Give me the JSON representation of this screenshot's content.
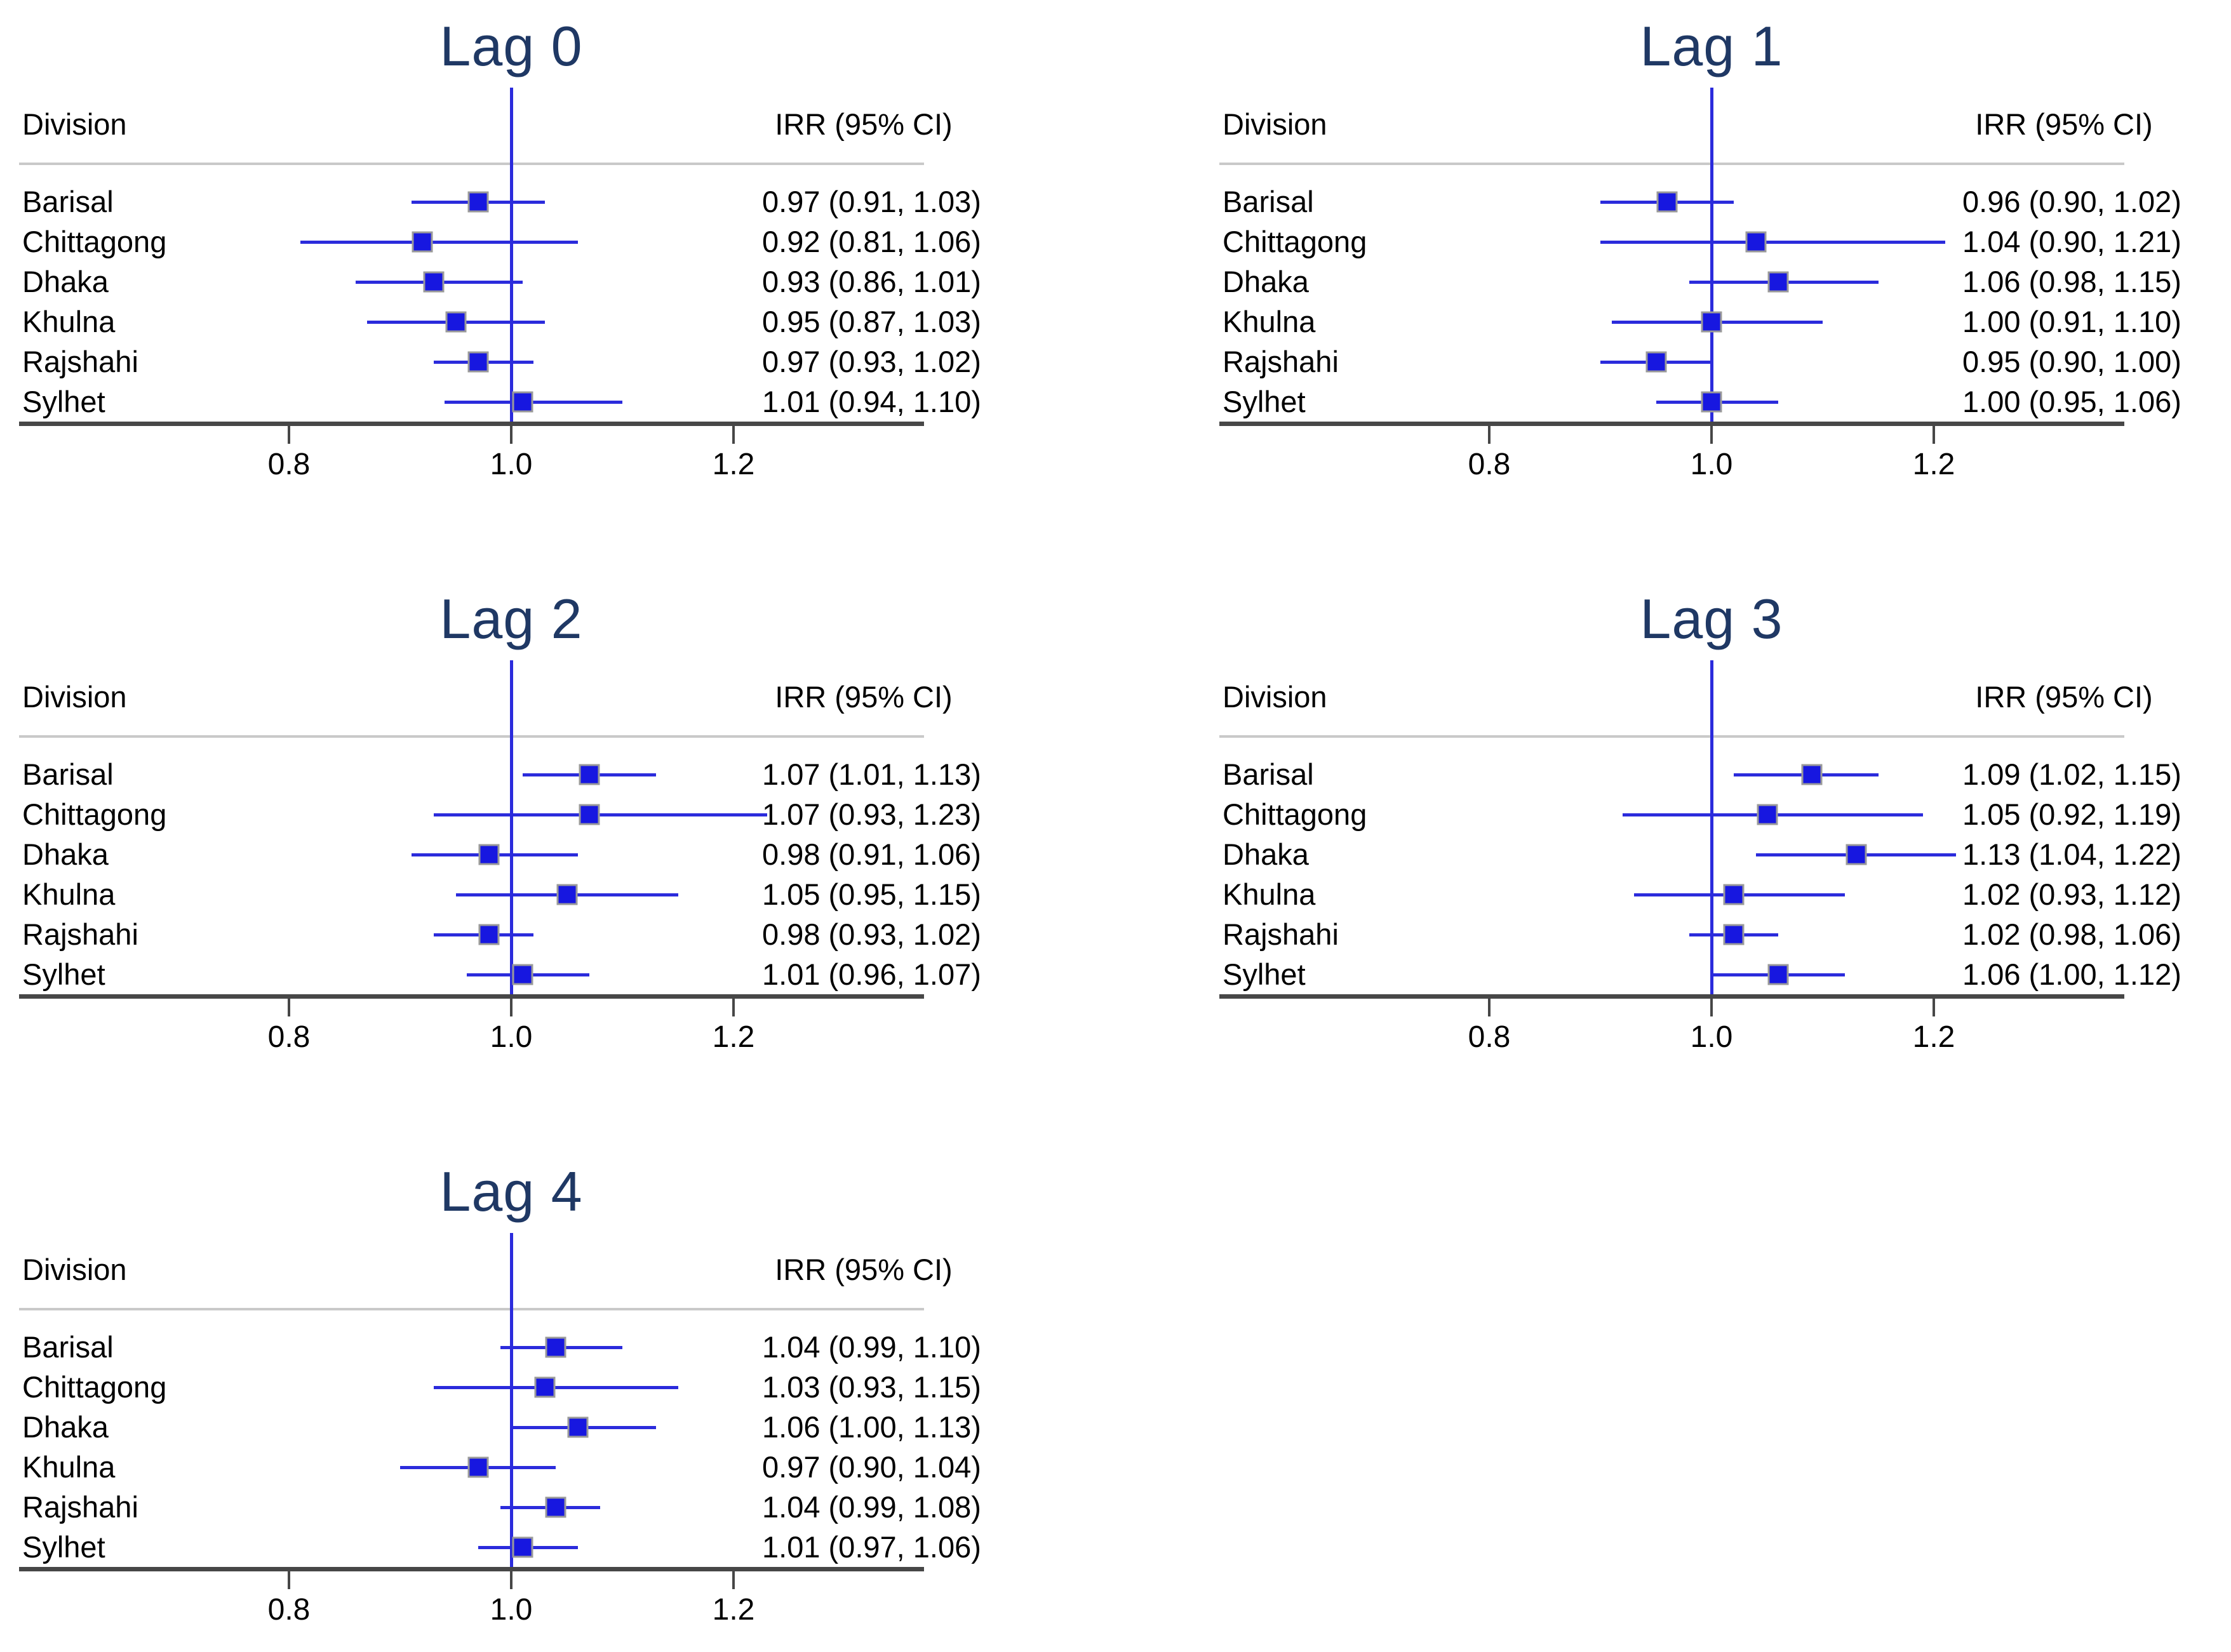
{
  "figure": {
    "background": "#ffffff",
    "panel_headers": {
      "division": "Division",
      "irr": "IRR (95% CI)"
    },
    "axis_tick_labels": [
      "0.8",
      "1.0",
      "1.2"
    ],
    "colors": {
      "title_text": "#1f3864",
      "marker_fill": "#1717e0",
      "ci_line": "#2b2bdc",
      "ref_line": "#2b2bdc",
      "axis_line": "#474747",
      "separator_line": "#c9c9c9",
      "body_text": "#000000"
    }
  },
  "chart_data": [
    {
      "type": "scatter",
      "chart_kind": "forest-plot",
      "title": "Lag 0",
      "xlabel": "",
      "ylabel": "",
      "xlim": [
        0.56,
        1.38
      ],
      "x_ticks": [
        0.8,
        1.0,
        1.2
      ],
      "ref_line_x": 1.0,
      "grid": false,
      "legend": "none",
      "categories": [
        "Barisal",
        "Chittagong",
        "Dhaka",
        "Khulna",
        "Rajshahi",
        "Sylhet"
      ],
      "rows": [
        {
          "division": "Barisal",
          "irr": 0.97,
          "ci_low": 0.91,
          "ci_high": 1.03,
          "label": "0.97 (0.91, 1.03)"
        },
        {
          "division": "Chittagong",
          "irr": 0.92,
          "ci_low": 0.81,
          "ci_high": 1.06,
          "label": "0.92 (0.81, 1.06)"
        },
        {
          "division": "Dhaka",
          "irr": 0.93,
          "ci_low": 0.86,
          "ci_high": 1.01,
          "label": "0.93 (0.86, 1.01)"
        },
        {
          "division": "Khulna",
          "irr": 0.95,
          "ci_low": 0.87,
          "ci_high": 1.03,
          "label": "0.95 (0.87, 1.03)"
        },
        {
          "division": "Rajshahi",
          "irr": 0.97,
          "ci_low": 0.93,
          "ci_high": 1.02,
          "label": "0.97 (0.93, 1.02)"
        },
        {
          "division": "Sylhet",
          "irr": 1.01,
          "ci_low": 0.94,
          "ci_high": 1.1,
          "label": "1.01 (0.94, 1.10)"
        }
      ]
    },
    {
      "type": "scatter",
      "chart_kind": "forest-plot",
      "title": "Lag 1",
      "xlabel": "",
      "ylabel": "",
      "xlim": [
        0.56,
        1.38
      ],
      "x_ticks": [
        0.8,
        1.0,
        1.2
      ],
      "ref_line_x": 1.0,
      "grid": false,
      "legend": "none",
      "categories": [
        "Barisal",
        "Chittagong",
        "Dhaka",
        "Khulna",
        "Rajshahi",
        "Sylhet"
      ],
      "rows": [
        {
          "division": "Barisal",
          "irr": 0.96,
          "ci_low": 0.9,
          "ci_high": 1.02,
          "label": "0.96 (0.90, 1.02)"
        },
        {
          "division": "Chittagong",
          "irr": 1.04,
          "ci_low": 0.9,
          "ci_high": 1.21,
          "label": "1.04 (0.90, 1.21)"
        },
        {
          "division": "Dhaka",
          "irr": 1.06,
          "ci_low": 0.98,
          "ci_high": 1.15,
          "label": "1.06 (0.98, 1.15)"
        },
        {
          "division": "Khulna",
          "irr": 1.0,
          "ci_low": 0.91,
          "ci_high": 1.1,
          "label": "1.00 (0.91, 1.10)"
        },
        {
          "division": "Rajshahi",
          "irr": 0.95,
          "ci_low": 0.9,
          "ci_high": 1.0,
          "label": "0.95 (0.90, 1.00)"
        },
        {
          "division": "Sylhet",
          "irr": 1.0,
          "ci_low": 0.95,
          "ci_high": 1.06,
          "label": "1.00 (0.95, 1.06)"
        }
      ]
    },
    {
      "type": "scatter",
      "chart_kind": "forest-plot",
      "title": "Lag 2",
      "xlabel": "",
      "ylabel": "",
      "xlim": [
        0.56,
        1.38
      ],
      "x_ticks": [
        0.8,
        1.0,
        1.2
      ],
      "ref_line_x": 1.0,
      "grid": false,
      "legend": "none",
      "categories": [
        "Barisal",
        "Chittagong",
        "Dhaka",
        "Khulna",
        "Rajshahi",
        "Sylhet"
      ],
      "rows": [
        {
          "division": "Barisal",
          "irr": 1.07,
          "ci_low": 1.01,
          "ci_high": 1.13,
          "label": "1.07 (1.01, 1.13)"
        },
        {
          "division": "Chittagong",
          "irr": 1.07,
          "ci_low": 0.93,
          "ci_high": 1.23,
          "label": "1.07 (0.93, 1.23)"
        },
        {
          "division": "Dhaka",
          "irr": 0.98,
          "ci_low": 0.91,
          "ci_high": 1.06,
          "label": "0.98 (0.91, 1.06)"
        },
        {
          "division": "Khulna",
          "irr": 1.05,
          "ci_low": 0.95,
          "ci_high": 1.15,
          "label": "1.05 (0.95, 1.15)"
        },
        {
          "division": "Rajshahi",
          "irr": 0.98,
          "ci_low": 0.93,
          "ci_high": 1.02,
          "label": "0.98 (0.93, 1.02)"
        },
        {
          "division": "Sylhet",
          "irr": 1.01,
          "ci_low": 0.96,
          "ci_high": 1.07,
          "label": "1.01 (0.96, 1.07)"
        }
      ]
    },
    {
      "type": "scatter",
      "chart_kind": "forest-plot",
      "title": "Lag 3",
      "xlabel": "",
      "ylabel": "",
      "xlim": [
        0.56,
        1.38
      ],
      "x_ticks": [
        0.8,
        1.0,
        1.2
      ],
      "ref_line_x": 1.0,
      "grid": false,
      "legend": "none",
      "categories": [
        "Barisal",
        "Chittagong",
        "Dhaka",
        "Khulna",
        "Rajshahi",
        "Sylhet"
      ],
      "rows": [
        {
          "division": "Barisal",
          "irr": 1.09,
          "ci_low": 1.02,
          "ci_high": 1.15,
          "label": "1.09 (1.02, 1.15)"
        },
        {
          "division": "Chittagong",
          "irr": 1.05,
          "ci_low": 0.92,
          "ci_high": 1.19,
          "label": "1.05 (0.92, 1.19)"
        },
        {
          "division": "Dhaka",
          "irr": 1.13,
          "ci_low": 1.04,
          "ci_high": 1.22,
          "label": "1.13 (1.04, 1.22)"
        },
        {
          "division": "Khulna",
          "irr": 1.02,
          "ci_low": 0.93,
          "ci_high": 1.12,
          "label": "1.02 (0.93, 1.12)"
        },
        {
          "division": "Rajshahi",
          "irr": 1.02,
          "ci_low": 0.98,
          "ci_high": 1.06,
          "label": "1.02 (0.98, 1.06)"
        },
        {
          "division": "Sylhet",
          "irr": 1.06,
          "ci_low": 1.0,
          "ci_high": 1.12,
          "label": "1.06 (1.00, 1.12)"
        }
      ]
    },
    {
      "type": "scatter",
      "chart_kind": "forest-plot",
      "title": "Lag 4",
      "xlabel": "",
      "ylabel": "",
      "xlim": [
        0.56,
        1.38
      ],
      "x_ticks": [
        0.8,
        1.0,
        1.2
      ],
      "ref_line_x": 1.0,
      "grid": false,
      "legend": "none",
      "categories": [
        "Barisal",
        "Chittagong",
        "Dhaka",
        "Khulna",
        "Rajshahi",
        "Sylhet"
      ],
      "rows": [
        {
          "division": "Barisal",
          "irr": 1.04,
          "ci_low": 0.99,
          "ci_high": 1.1,
          "label": "1.04 (0.99, 1.10)"
        },
        {
          "division": "Chittagong",
          "irr": 1.03,
          "ci_low": 0.93,
          "ci_high": 1.15,
          "label": "1.03 (0.93, 1.15)"
        },
        {
          "division": "Dhaka",
          "irr": 1.06,
          "ci_low": 1.0,
          "ci_high": 1.13,
          "label": "1.06 (1.00, 1.13)"
        },
        {
          "division": "Khulna",
          "irr": 0.97,
          "ci_low": 0.9,
          "ci_high": 1.04,
          "label": "0.97 (0.90, 1.04)"
        },
        {
          "division": "Rajshahi",
          "irr": 1.04,
          "ci_low": 0.99,
          "ci_high": 1.08,
          "label": "1.04 (0.99, 1.08)"
        },
        {
          "division": "Sylhet",
          "irr": 1.01,
          "ci_low": 0.97,
          "ci_high": 1.06,
          "label": "1.01 (0.97, 1.06)"
        }
      ]
    }
  ]
}
